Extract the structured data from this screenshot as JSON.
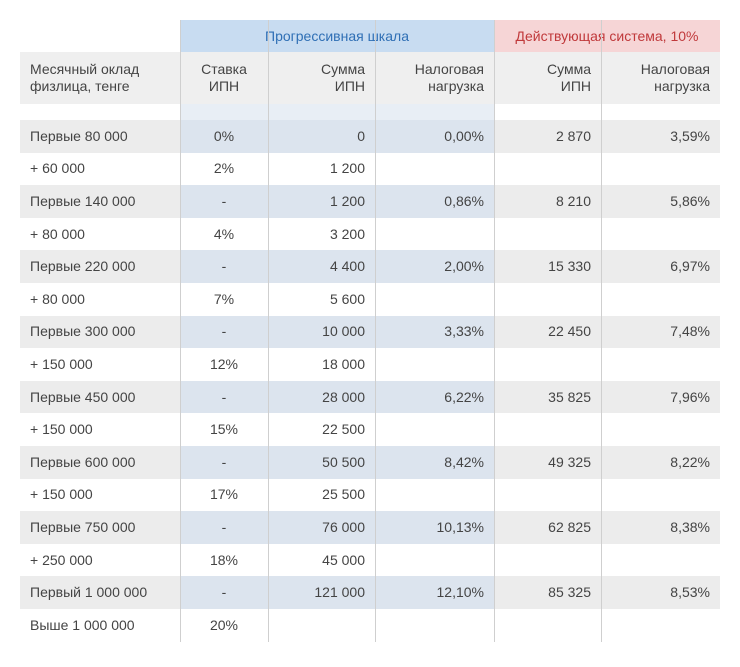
{
  "table": {
    "groups": [
      "Прогрессивная шкала",
      "Действующая система, 10%"
    ],
    "header": [
      "Месячный оклад\nфизлица, тенге",
      "Ставка\nИПН",
      "Сумма\nИПН",
      "Налоговая\nнагрузка",
      "Сумма\nИПН",
      "Налоговая\nнагрузка"
    ],
    "rows": [
      [
        "Первые 80 000",
        "0%",
        "0",
        "0,00%",
        "2 870",
        "3,59%"
      ],
      [
        "+ 60 000",
        "2%",
        "1 200",
        null,
        null,
        null
      ],
      [
        "Первые 140 000",
        "-",
        "1 200",
        "0,86%",
        "8 210",
        "5,86%"
      ],
      [
        "+ 80 000",
        "4%",
        "3 200",
        null,
        null,
        null
      ],
      [
        "Первые 220 000",
        "-",
        "4 400",
        "2,00%",
        "15 330",
        "6,97%"
      ],
      [
        "+ 80 000",
        "7%",
        "5 600",
        null,
        null,
        null
      ],
      [
        "Первые 300 000",
        "-",
        "10 000",
        "3,33%",
        "22 450",
        "7,48%"
      ],
      [
        "+ 150 000",
        "12%",
        "18 000",
        null,
        null,
        null
      ],
      [
        "Первые 450 000",
        "-",
        "28 000",
        "6,22%",
        "35 825",
        "7,96%"
      ],
      [
        "+ 150 000",
        "15%",
        "22 500",
        null,
        null,
        null
      ],
      [
        "Первые 600 000",
        "-",
        "50 500",
        "8,42%",
        "49 325",
        "8,22%"
      ],
      [
        "+ 150 000",
        "17%",
        "25 500",
        null,
        null,
        null
      ],
      [
        "Первые 750 000",
        "-",
        "76 000",
        "10,13%",
        "62 825",
        "8,38%"
      ],
      [
        "+ 250 000",
        "18%",
        "45 000",
        null,
        null,
        null
      ],
      [
        "Первый 1 000 000",
        "-",
        "121 000",
        "12,10%",
        "85 325",
        "8,53%"
      ],
      [
        "Выше 1 000 000",
        "20%",
        null,
        null,
        null,
        null
      ]
    ]
  }
}
